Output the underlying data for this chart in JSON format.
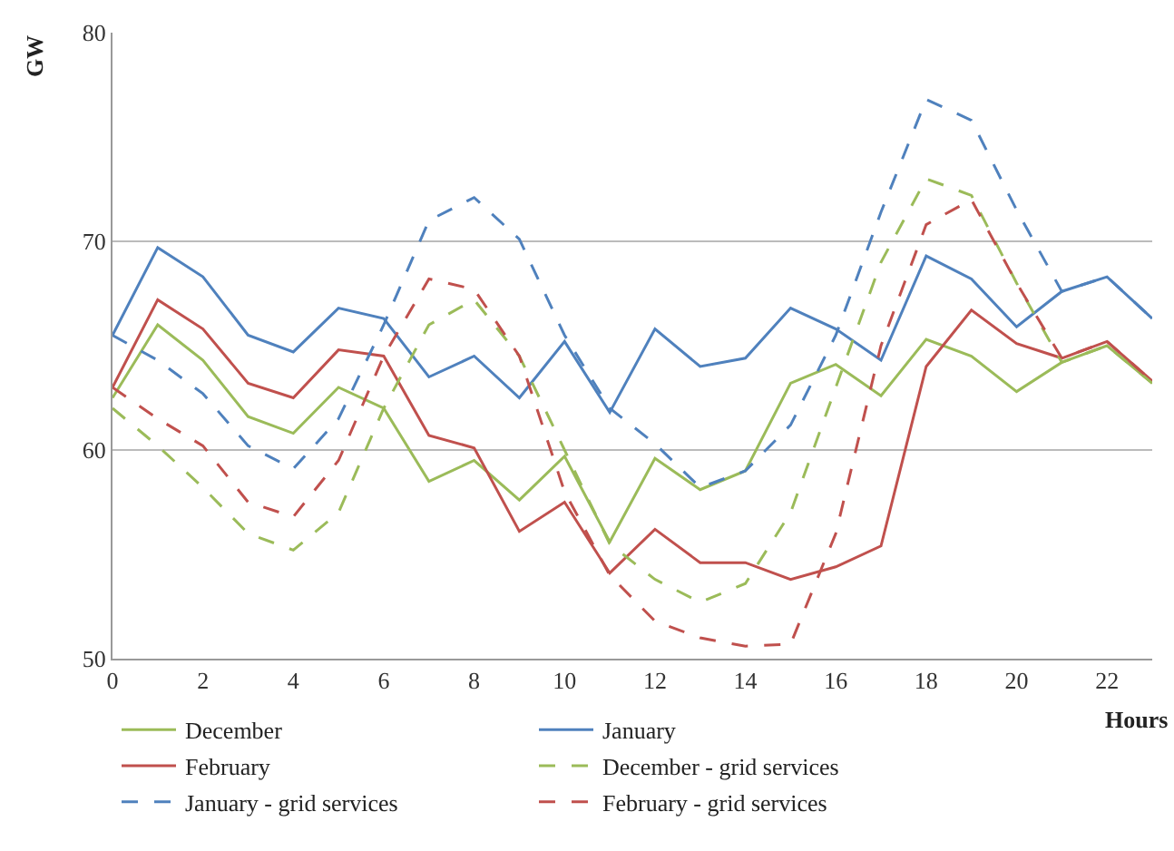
{
  "chart_data": {
    "type": "line",
    "xlabel": "Hours",
    "ylabel": "GW",
    "x": [
      0,
      1,
      2,
      3,
      4,
      5,
      6,
      7,
      8,
      9,
      10,
      11,
      12,
      13,
      14,
      15,
      16,
      17,
      18,
      19,
      20,
      21,
      22,
      23
    ],
    "xlim": [
      0,
      23
    ],
    "xticks": [
      0,
      2,
      4,
      6,
      8,
      10,
      12,
      14,
      16,
      18,
      20,
      22
    ],
    "ylim": [
      50,
      80
    ],
    "yticks": [
      50,
      60,
      70,
      80
    ],
    "grid": "y",
    "legend": "bottom",
    "marker": "none",
    "series": [
      {
        "name": "December",
        "color": "#9bbb59",
        "line_style": "solid",
        "values": [
          62.5,
          66,
          64.3,
          61.6,
          60.8,
          63,
          62,
          58.5,
          59.5,
          57.6,
          59.7,
          55.6,
          59.6,
          58.1,
          59,
          63.2,
          64.1,
          62.6,
          65.3,
          64.5,
          62.8,
          64.2,
          65,
          63.2
        ]
      },
      {
        "name": "January",
        "color": "#4f81bd",
        "line_style": "solid",
        "values": [
          65.5,
          69.7,
          68.3,
          65.5,
          64.7,
          66.8,
          66.3,
          63.5,
          64.5,
          62.5,
          65.2,
          61.8,
          65.8,
          64,
          64.4,
          66.8,
          65.8,
          64.3,
          69.3,
          68.2,
          65.9,
          67.6,
          68.3,
          66.3
        ]
      },
      {
        "name": "February",
        "color": "#c0504d",
        "line_style": "solid",
        "values": [
          63,
          67.2,
          65.8,
          63.2,
          62.5,
          64.8,
          64.5,
          60.7,
          60.1,
          56.1,
          57.5,
          54.1,
          56.2,
          54.6,
          54.6,
          53.8,
          54.4,
          55.4,
          64,
          66.7,
          65.1,
          64.4,
          65.2,
          63.3
        ]
      },
      {
        "name": "December - grid services",
        "color": "#9bbb59",
        "line_style": "dashed",
        "values": [
          62,
          60.2,
          58.2,
          56,
          55.2,
          57,
          62,
          66,
          67.2,
          64.5,
          60,
          55.5,
          53.8,
          52.7,
          53.6,
          57,
          63,
          69,
          73,
          72.2,
          68,
          64.2,
          65,
          63.2
        ]
      },
      {
        "name": "January - grid services",
        "color": "#4f81bd",
        "line_style": "dashed",
        "values": [
          65.5,
          64.3,
          62.7,
          60.2,
          59.1,
          61.5,
          66,
          71,
          72.1,
          70.1,
          65.5,
          62,
          60.3,
          58.2,
          59,
          61.2,
          65.5,
          71.4,
          76.8,
          75.8,
          71.5,
          67.6,
          68.3,
          66.3
        ]
      },
      {
        "name": "February - grid services",
        "color": "#c0504d",
        "line_style": "dashed",
        "values": [
          63,
          61.5,
          60.2,
          57.5,
          56.8,
          59.5,
          64.5,
          68.2,
          67.7,
          64.5,
          58,
          54,
          51.8,
          51,
          50.6,
          50.7,
          56,
          65,
          70.8,
          72,
          68,
          64.4,
          65.2,
          63.3
        ]
      }
    ]
  }
}
